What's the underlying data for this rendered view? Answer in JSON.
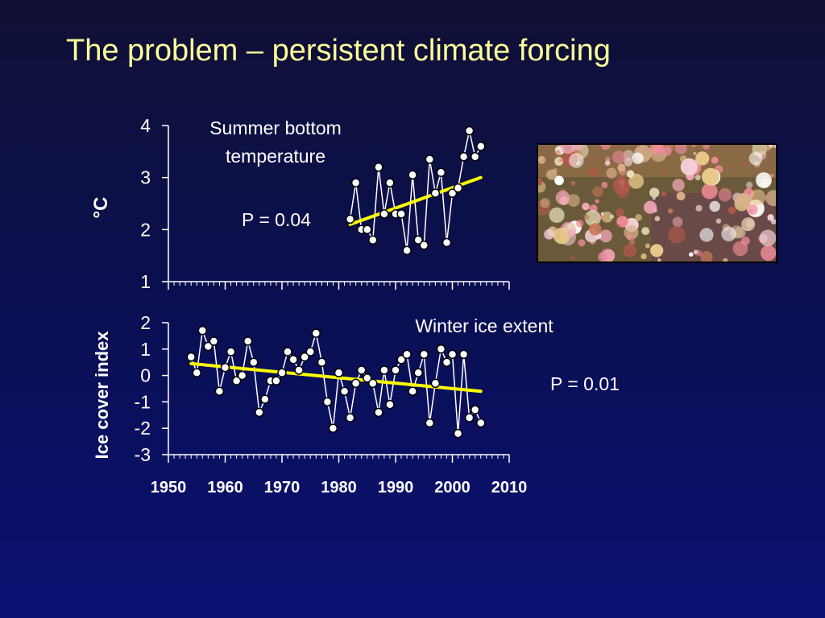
{
  "slide": {
    "title": "The problem – persistent climate forcing"
  },
  "photo": {
    "icon": "seafloor-invertebrates-photo"
  },
  "colors": {
    "background": "#0a0f55",
    "title": "#ffff99",
    "trend": "#ffff00",
    "series": "#ffffff"
  },
  "chart_data": [
    {
      "type": "line",
      "title": "Summer bottom temperature",
      "title_lines": [
        "Summer bottom",
        "temperature"
      ],
      "annotation": "P = 0.04",
      "ylabel": "°C",
      "xlabel": "",
      "ylim": [
        1,
        4
      ],
      "yticks": [
        4,
        3,
        2,
        1
      ],
      "xlim": [
        1950,
        2010
      ],
      "series": [
        {
          "role": "observed",
          "x": [
            1982,
            1983,
            1984,
            1985,
            1986,
            1987,
            1988,
            1989,
            1990,
            1991,
            1992,
            1993,
            1994,
            1995,
            1996,
            1997,
            1998,
            1999,
            2000,
            2001,
            2002,
            2003,
            2004,
            2005
          ],
          "y": [
            2.2,
            2.9,
            2.0,
            2.0,
            1.8,
            3.2,
            2.3,
            2.9,
            2.3,
            2.3,
            1.6,
            3.05,
            1.8,
            1.7,
            3.35,
            2.7,
            3.1,
            1.75,
            2.7,
            2.8,
            3.4,
            3.9,
            3.4,
            3.6
          ]
        },
        {
          "role": "trend",
          "x": [
            1982,
            2005
          ],
          "y": [
            2.1,
            3.0
          ]
        }
      ]
    },
    {
      "type": "line",
      "title": "Winter ice extent",
      "annotation": "P = 0.01",
      "ylabel": "Ice cover index",
      "xlabel": "",
      "ylim": [
        -3,
        2
      ],
      "yticks": [
        2,
        1,
        0,
        -1,
        -2,
        -3
      ],
      "xlim": [
        1950,
        2010
      ],
      "xticks": [
        1950,
        1960,
        1970,
        1980,
        1990,
        2000,
        2010
      ],
      "series": [
        {
          "role": "observed",
          "x": [
            1954,
            1955,
            1956,
            1957,
            1958,
            1959,
            1960,
            1961,
            1962,
            1963,
            1964,
            1965,
            1966,
            1967,
            1968,
            1969,
            1970,
            1971,
            1972,
            1973,
            1974,
            1975,
            1976,
            1977,
            1978,
            1979,
            1980,
            1981,
            1982,
            1983,
            1984,
            1985,
            1986,
            1987,
            1988,
            1989,
            1990,
            1991,
            1992,
            1993,
            1994,
            1995,
            1996,
            1997,
            1998,
            1999,
            2000,
            2001,
            2002,
            2003,
            2004,
            2005
          ],
          "y": [
            0.7,
            0.1,
            1.7,
            1.1,
            1.3,
            -0.6,
            0.3,
            0.9,
            -0.2,
            0.0,
            1.3,
            0.5,
            -1.4,
            -0.9,
            -0.2,
            -0.2,
            0.1,
            0.9,
            0.6,
            0.2,
            0.7,
            0.9,
            1.6,
            0.5,
            -1.0,
            -2.0,
            0.1,
            -0.6,
            -1.6,
            -0.3,
            0.2,
            -0.1,
            -0.3,
            -1.4,
            0.2,
            -1.1,
            0.2,
            0.6,
            0.8,
            -0.6,
            0.1,
            0.8,
            -1.8,
            -0.3,
            1.0,
            0.5,
            0.8,
            -2.2,
            0.8,
            -1.6,
            -1.3,
            -1.8
          ]
        },
        {
          "role": "trend",
          "x": [
            1954,
            2005
          ],
          "y": [
            0.45,
            -0.6
          ]
        }
      ]
    }
  ]
}
